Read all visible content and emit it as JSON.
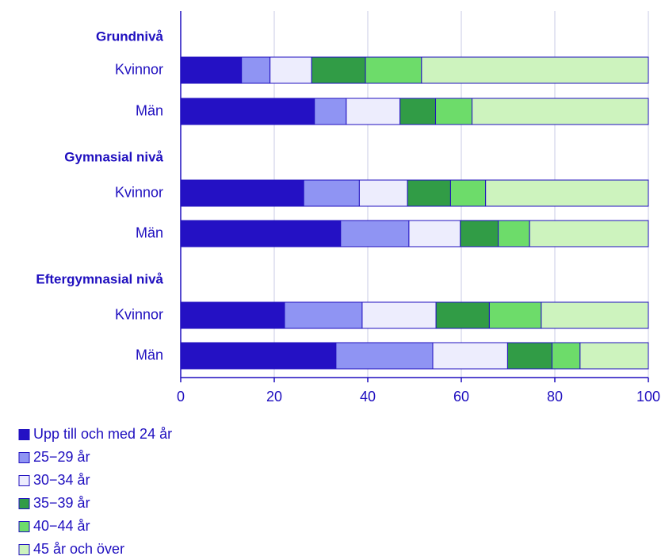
{
  "chart_data": {
    "type": "bar",
    "stacked": true,
    "orientation": "horizontal",
    "title": "",
    "xlabel": "",
    "ylabel": "",
    "xlim": [
      0,
      100
    ],
    "xticks": [
      "0",
      "20",
      "40",
      "60",
      "80",
      "100"
    ],
    "grid": true,
    "legend_position": "bottom-left",
    "groups": [
      {
        "label": "Grundnivå"
      },
      {
        "label": "Gymnasial nivå"
      },
      {
        "label": "Eftergymnasial nivå"
      }
    ],
    "categories": [
      {
        "group": 0,
        "label": "Kvinnor"
      },
      {
        "group": 0,
        "label": "Män"
      },
      {
        "group": 1,
        "label": "Kvinnor"
      },
      {
        "group": 1,
        "label": "Män"
      },
      {
        "group": 2,
        "label": "Kvinnor"
      },
      {
        "group": 2,
        "label": "Män"
      }
    ],
    "series": [
      {
        "name": "Upp till och med 24 år",
        "color": "#2411c4",
        "values": [
          13.0,
          28.6,
          26.3,
          34.2,
          22.2,
          33.2
        ]
      },
      {
        "name": "25−29 år",
        "color": "#8f94f3",
        "values": [
          6.1,
          6.8,
          11.9,
          14.6,
          16.6,
          20.7
        ]
      },
      {
        "name": "30−34 år",
        "color": "#ededfd",
        "values": [
          8.9,
          11.5,
          10.3,
          11.0,
          15.8,
          16.0
        ]
      },
      {
        "name": "35−39 år",
        "color": "#319c46",
        "values": [
          11.5,
          7.6,
          9.2,
          8.1,
          11.4,
          9.5
        ]
      },
      {
        "name": "40−44 år",
        "color": "#6ddc6a",
        "values": [
          12.0,
          7.8,
          7.5,
          6.7,
          11.1,
          6.0
        ]
      },
      {
        "name": "45 år och över",
        "color": "#cdf3be",
        "values": [
          48.5,
          37.7,
          34.8,
          25.4,
          22.9,
          14.6
        ]
      }
    ]
  }
}
